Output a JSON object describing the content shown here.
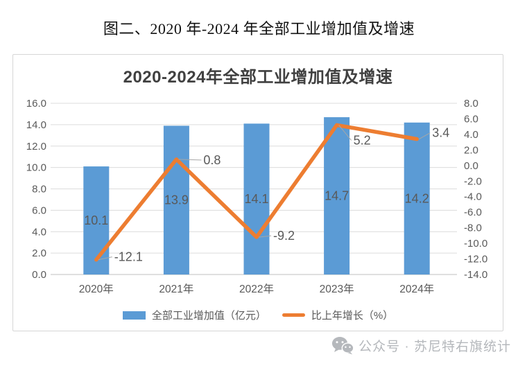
{
  "page_title": "图二、2020 年-2024 年全部工业增加值及增速",
  "footer": {
    "icon": "wechat-icon",
    "text": "公众号 · 苏尼特右旗统计"
  },
  "chart_data": {
    "type": "bar+line",
    "title": "2020-2024年全部工业增加值及增速",
    "categories": [
      "2020年",
      "2021年",
      "2022年",
      "2023年",
      "2024年"
    ],
    "series": [
      {
        "name": "全部工业增加值（亿元）",
        "type": "bar",
        "axis": "left",
        "color": "#5B9BD5",
        "values": [
          10.1,
          13.9,
          14.1,
          14.7,
          14.2
        ],
        "labels": [
          "10.1",
          "13.9",
          "14.1",
          "14.7",
          "14.2"
        ]
      },
      {
        "name": "比上年增长（%）",
        "type": "line",
        "axis": "right",
        "color": "#ED7D31",
        "values": [
          -12.1,
          0.8,
          -9.2,
          5.2,
          3.4
        ],
        "labels": [
          "-12.1",
          "0.8",
          "-9.2",
          "5.2",
          "3.4"
        ],
        "label_offsets": [
          [
            26,
            -4
          ],
          [
            39,
            1
          ],
          [
            24,
            -2
          ],
          [
            24,
            22
          ],
          [
            22,
            -9
          ]
        ]
      }
    ],
    "axes": {
      "left": {
        "min": 0,
        "max": 16,
        "step": 2,
        "ticks": [
          "16.0",
          "14.0",
          "12.0",
          "10.0",
          "8.0",
          "6.0",
          "4.0",
          "2.0",
          "0.0"
        ]
      },
      "right": {
        "min": -14,
        "max": 8,
        "step": 2,
        "ticks": [
          "8.0",
          "6.0",
          "4.0",
          "2.0",
          "0.0",
          "-2.0",
          "-4.0",
          "-6.0",
          "-8.0",
          "-10.0",
          "-12.0",
          "-14.0"
        ]
      }
    },
    "grid": true,
    "legend_position": "bottom",
    "styles": {
      "grid_color": "#dcdcdc",
      "axis_color": "#bfbfbf",
      "tick_color": "#595959",
      "data_label_color": "#595959",
      "title_color": "#404040",
      "leader_color": "#a6a6a6",
      "frame_border": "#d6d6d6",
      "footer_color": "#b5b8bc"
    }
  }
}
